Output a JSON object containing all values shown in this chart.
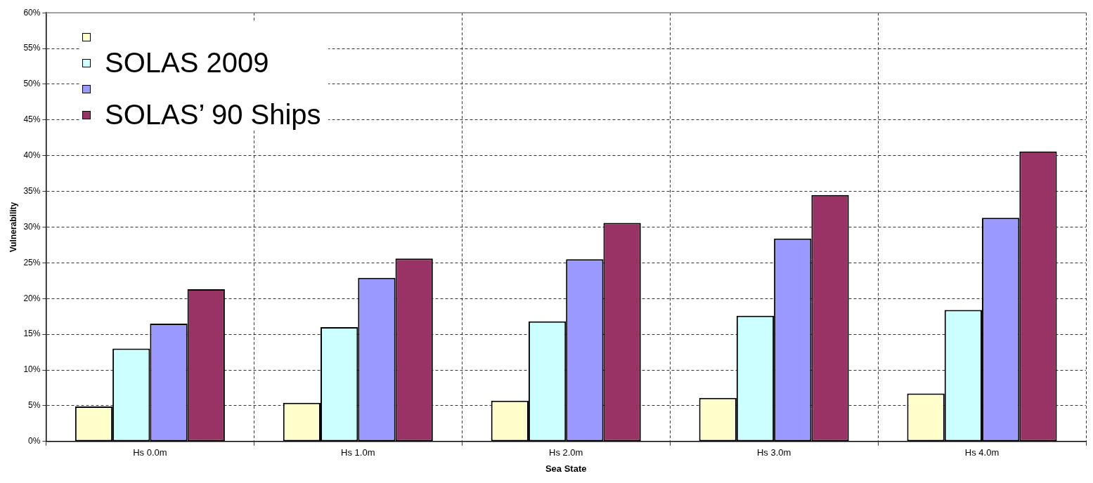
{
  "chart_data": {
    "type": "bar",
    "xlabel": "Sea State",
    "ylabel": "Vulnerability",
    "categories": [
      "Hs 0.0m",
      "Hs 1.0m",
      "Hs 2.0m",
      "Hs 3.0m",
      "Hs 4.0m"
    ],
    "series": [
      {
        "color": "#ffffcc",
        "values": [
          4.9,
          5.4,
          5.7,
          6.1,
          6.7
        ]
      },
      {
        "name": "SOLAS 2009",
        "color": "#ccffff",
        "values": [
          13.0,
          16.0,
          16.8,
          17.6,
          18.4
        ]
      },
      {
        "color": "#9999ff",
        "values": [
          16.5,
          22.9,
          25.5,
          28.4,
          31.3
        ]
      },
      {
        "name": "SOLAS’ 90 Ships",
        "color": "#993366",
        "values": [
          21.3,
          25.6,
          30.6,
          34.5,
          40.6
        ]
      }
    ],
    "ylim": [
      0,
      60
    ],
    "yticks": [
      {
        "value": 0,
        "label": "0%"
      },
      {
        "value": 5,
        "label": "5%"
      },
      {
        "value": 10,
        "label": "10%"
      },
      {
        "value": 15,
        "label": "15%"
      },
      {
        "value": 20,
        "label": "20%"
      },
      {
        "value": 25,
        "label": "25%"
      },
      {
        "value": 30,
        "label": "30%"
      },
      {
        "value": 35,
        "label": "35%"
      },
      {
        "value": 40,
        "label": "40%"
      },
      {
        "value": 45,
        "label": "45%"
      },
      {
        "value": 50,
        "label": "50%"
      },
      {
        "value": 55,
        "label": "55%"
      },
      {
        "value": 60,
        "label": "60%"
      }
    ],
    "grid": true,
    "legend": "top left"
  }
}
